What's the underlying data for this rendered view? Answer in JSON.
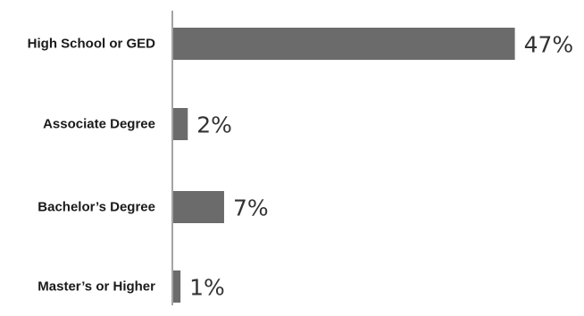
{
  "chart_data": {
    "type": "bar",
    "orientation": "horizontal",
    "categories": [
      "High School or GED",
      "Associate Degree",
      "Bachelor’s Degree",
      "Master’s or Higher"
    ],
    "values": [
      47,
      2,
      7,
      1
    ],
    "value_labels": [
      "47%",
      "2%",
      "7%",
      "1%"
    ],
    "unit": "%",
    "xlim": [
      0,
      50
    ],
    "grid": false,
    "legend": "none",
    "colors": {
      "bar": "#6b6b6b",
      "axis": "#4a4a4a",
      "category_text": "#1a1a1a",
      "value_text": "#333333"
    }
  }
}
